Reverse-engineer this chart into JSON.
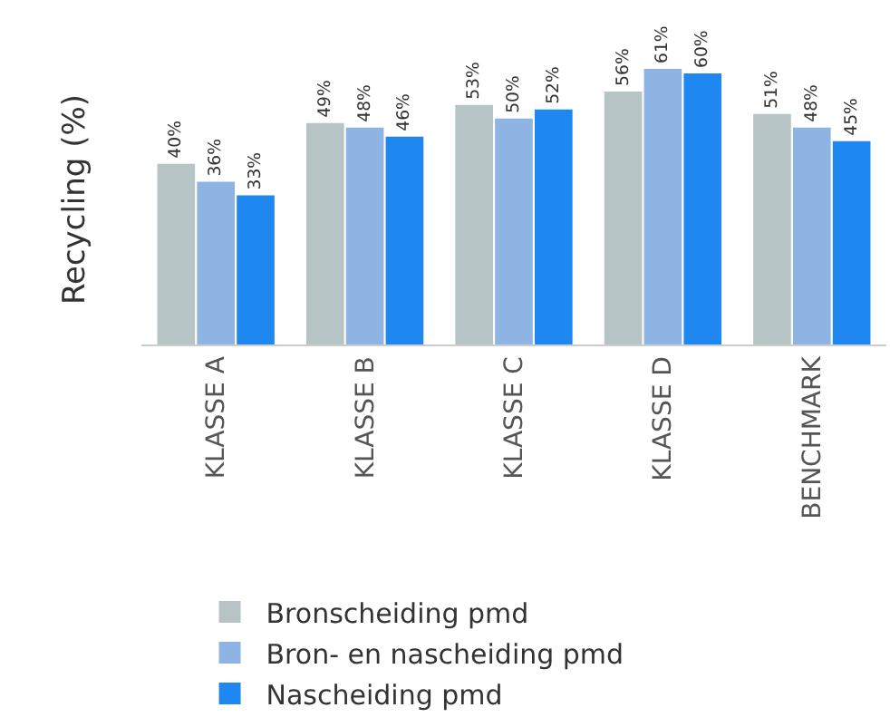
{
  "chart_data": {
    "type": "bar",
    "ylabel": "Recycling (%)",
    "categories": [
      "KLASSE A",
      "KLASSE B",
      "KLASSE C",
      "KLASSE D",
      "BENCHMARK"
    ],
    "series": [
      {
        "name": "Bronscheiding pmd",
        "color": "#b7c4c6",
        "values": [
          40,
          49,
          53,
          56,
          51
        ],
        "value_labels": [
          "40%",
          "49%",
          "53%",
          "56%",
          "51%"
        ]
      },
      {
        "name": "Bron- en nascheiding pmd",
        "color": "#8db4e3",
        "values": [
          36,
          48,
          50,
          61,
          48
        ],
        "value_labels": [
          "36%",
          "48%",
          "50%",
          "61%",
          "48%"
        ]
      },
      {
        "name": "Nascheiding pmd",
        "color": "#1e88f0",
        "values": [
          33,
          46,
          52,
          60,
          45
        ],
        "value_labels": [
          "33%",
          "46%",
          "52%",
          "60%",
          "45%"
        ]
      }
    ],
    "tick_labels": "x",
    "legend": "bottom"
  }
}
